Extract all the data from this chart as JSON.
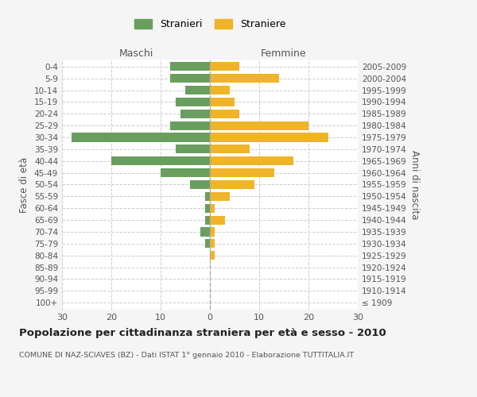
{
  "age_groups": [
    "100+",
    "95-99",
    "90-94",
    "85-89",
    "80-84",
    "75-79",
    "70-74",
    "65-69",
    "60-64",
    "55-59",
    "50-54",
    "45-49",
    "40-44",
    "35-39",
    "30-34",
    "25-29",
    "20-24",
    "15-19",
    "10-14",
    "5-9",
    "0-4"
  ],
  "birth_years": [
    "≤ 1909",
    "1910-1914",
    "1915-1919",
    "1920-1924",
    "1925-1929",
    "1930-1934",
    "1935-1939",
    "1940-1944",
    "1945-1949",
    "1950-1954",
    "1955-1959",
    "1960-1964",
    "1965-1969",
    "1970-1974",
    "1975-1979",
    "1980-1984",
    "1985-1989",
    "1990-1994",
    "1995-1999",
    "2000-2004",
    "2005-2009"
  ],
  "males": [
    0,
    0,
    0,
    0,
    0,
    1,
    2,
    1,
    1,
    1,
    4,
    10,
    20,
    7,
    28,
    8,
    6,
    7,
    5,
    8,
    8
  ],
  "females": [
    0,
    0,
    0,
    0,
    1,
    1,
    1,
    3,
    1,
    4,
    9,
    13,
    17,
    8,
    24,
    20,
    6,
    5,
    4,
    14,
    6
  ],
  "male_color": "#6a9e5f",
  "female_color": "#f0b429",
  "background_color": "#f5f5f5",
  "bar_background": "#ffffff",
  "grid_color": "#cccccc",
  "title": "Popolazione per cittadinanza straniera per età e sesso - 2010",
  "subtitle": "COMUNE DI NAZ-SCIAVES (BZ) - Dati ISTAT 1° gennaio 2010 - Elaborazione TUTTITALIA.IT",
  "left_label": "Maschi",
  "right_label": "Femmine",
  "ylabel": "Fasce di età",
  "right_ylabel": "Anni di nascita",
  "legend_males": "Stranieri",
  "legend_females": "Straniere",
  "xlim": 30
}
